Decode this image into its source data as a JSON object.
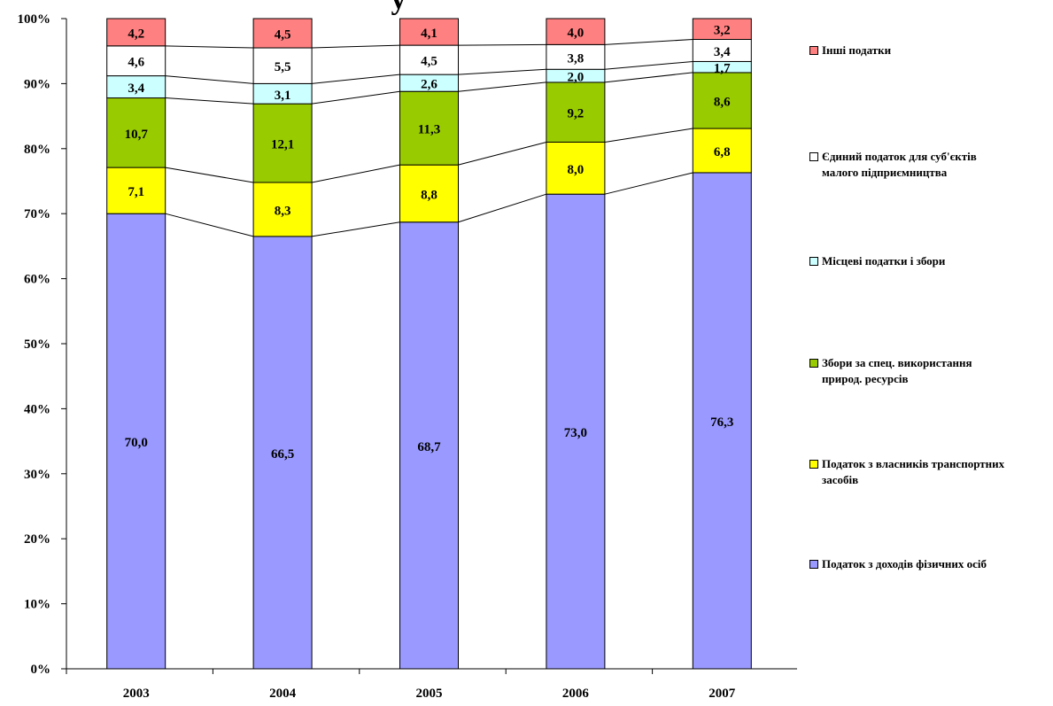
{
  "chart_data": {
    "type": "bar",
    "stacked": true,
    "title": "у",
    "categories": [
      "2003",
      "2004",
      "2005",
      "2006",
      "2007"
    ],
    "y_ticks": [
      "0%",
      "10%",
      "20%",
      "30%",
      "40%",
      "50%",
      "60%",
      "70%",
      "80%",
      "90%",
      "100%"
    ],
    "ylim": [
      0,
      100
    ],
    "grid": false,
    "legend_position": "right",
    "series": [
      {
        "name": "Податок з доходів фізичних осіб",
        "color": "#9999ff",
        "values": [
          70.0,
          66.5,
          68.7,
          73.0,
          76.3
        ],
        "labels": [
          "70,0",
          "66,5",
          "68,7",
          "73,0",
          "76,3"
        ]
      },
      {
        "name": "Податок з власників транспортних засобів",
        "color": "#ffff00",
        "values": [
          7.1,
          8.3,
          8.8,
          8.0,
          6.8
        ],
        "labels": [
          "7,1",
          "8,3",
          "8,8",
          "8,0",
          "6,8"
        ]
      },
      {
        "name": "Збори за спец. використання природ. ресурсів",
        "color": "#99cc00",
        "values": [
          10.7,
          12.1,
          11.3,
          9.2,
          8.6
        ],
        "labels": [
          "10,7",
          "12,1",
          "11,3",
          "9,2",
          "8,6"
        ]
      },
      {
        "name": "Місцеві податки і збори",
        "color": "#ccffff",
        "values": [
          3.4,
          3.1,
          2.6,
          2.0,
          1.7
        ],
        "labels": [
          "3,4",
          "3,1",
          "2,6",
          "2,0",
          "1,7"
        ]
      },
      {
        "name": "Єдиний податок для суб'єктів малого підприємництва",
        "color": "#ffffff",
        "values": [
          4.6,
          5.5,
          4.5,
          3.8,
          3.4
        ],
        "labels": [
          "4,6",
          "5,5",
          "4,5",
          "3,8",
          "3,4"
        ]
      },
      {
        "name": "Інші податки",
        "color": "#ff8080",
        "values": [
          4.2,
          4.5,
          4.1,
          4.0,
          3.2
        ],
        "labels": [
          "4,2",
          "4,5",
          "4,1",
          "4,0",
          "3,2"
        ]
      }
    ]
  },
  "legend": {
    "items": [
      {
        "lines": [
          "Інші податки"
        ],
        "color": "#ff8080"
      },
      {
        "lines": [
          "Єдиний податок для суб'єктів",
          "малого підприємництва"
        ],
        "color": "#ffffff"
      },
      {
        "lines": [
          "Місцеві податки і збори"
        ],
        "color": "#ccffff"
      },
      {
        "lines": [
          "Збори за спец. використання",
          "природ. ресурсів"
        ],
        "color": "#99cc00"
      },
      {
        "lines": [
          "Податок з власників транспортних",
          "засобів"
        ],
        "color": "#ffff00"
      },
      {
        "lines": [
          "Податок з доходів фізичних осіб"
        ],
        "color": "#9999ff"
      }
    ]
  }
}
